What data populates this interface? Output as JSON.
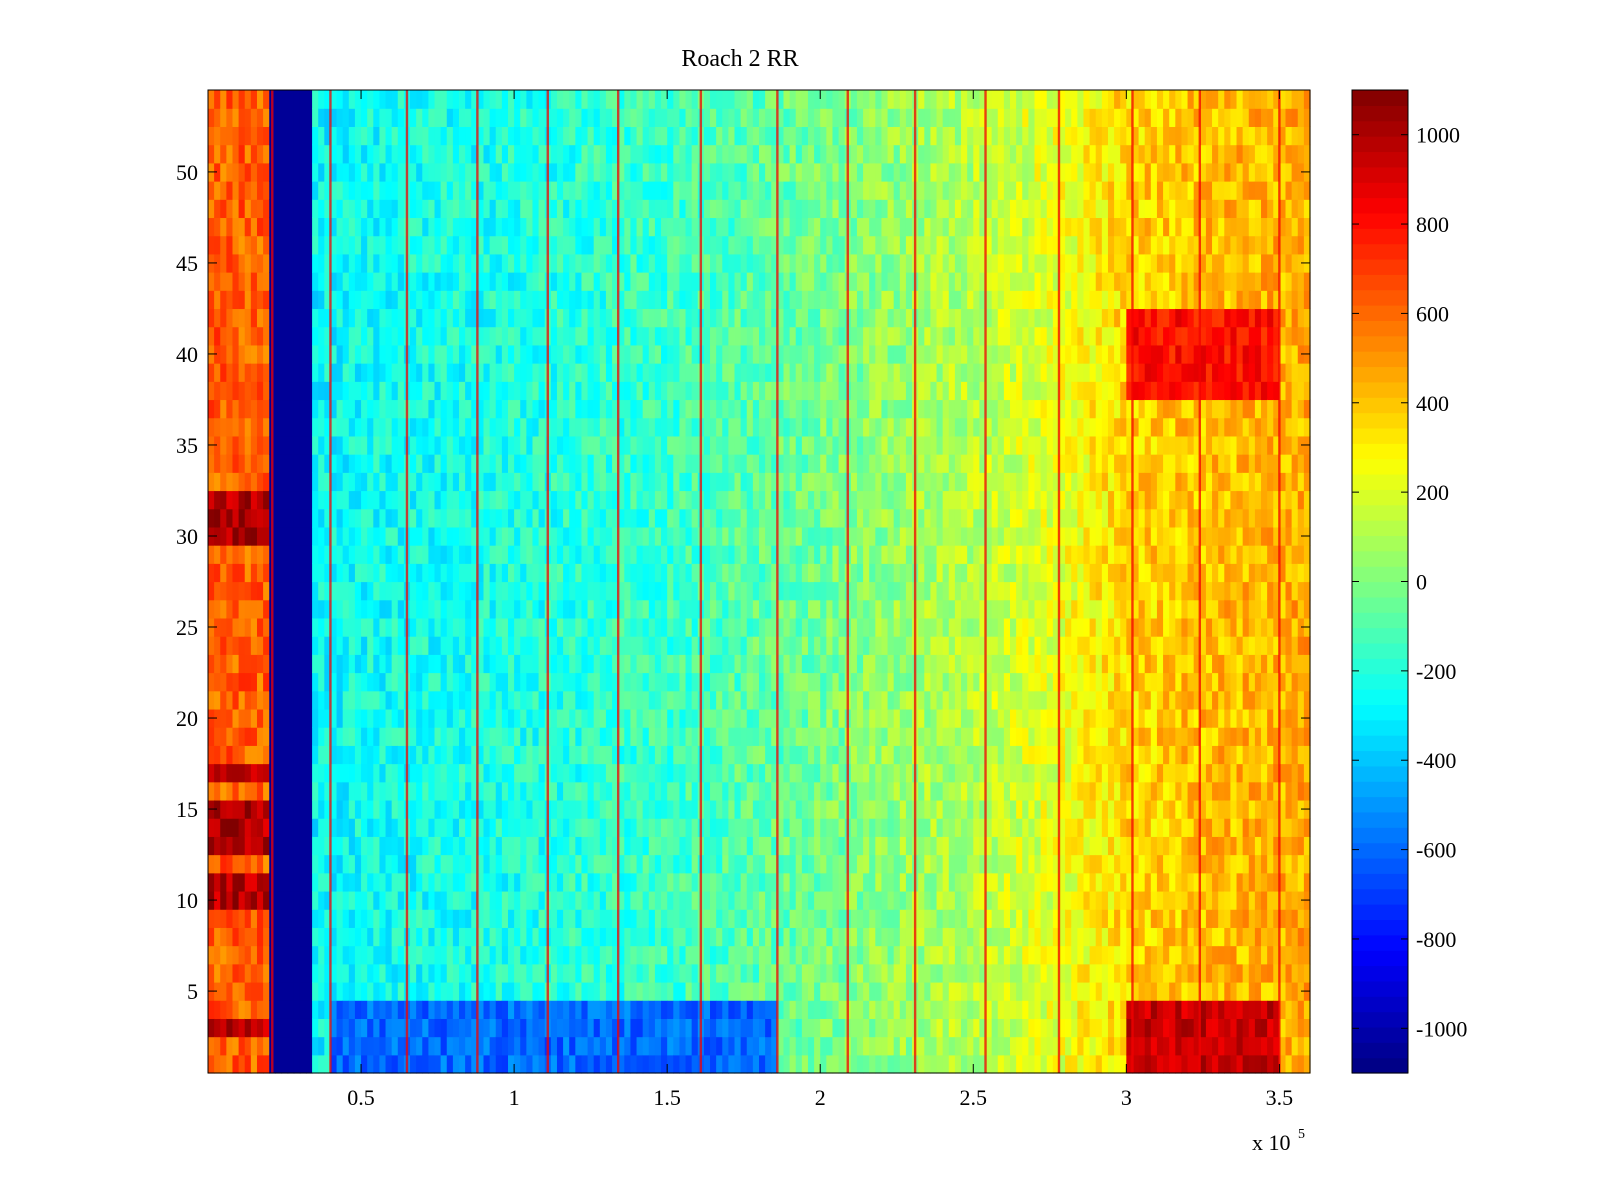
{
  "chart_data": {
    "type": "heatmap",
    "title": "Roach 2 RR",
    "xlabel": "",
    "ylabel": "",
    "x_multiplier_label": "x 10",
    "x_multiplier_exponent": "5",
    "xlim": [
      0,
      3.6
    ],
    "ylim": [
      0.5,
      54.5
    ],
    "rows": 54,
    "x_ticks": [
      {
        "value": 0.5,
        "label": "0.5"
      },
      {
        "value": 1,
        "label": "1"
      },
      {
        "value": 1.5,
        "label": "1.5"
      },
      {
        "value": 2,
        "label": "2"
      },
      {
        "value": 2.5,
        "label": "2.5"
      },
      {
        "value": 3,
        "label": "3"
      },
      {
        "value": 3.5,
        "label": "3.5"
      }
    ],
    "y_ticks": [
      {
        "value": 5,
        "label": "5"
      },
      {
        "value": 10,
        "label": "10"
      },
      {
        "value": 15,
        "label": "15"
      },
      {
        "value": 20,
        "label": "20"
      },
      {
        "value": 25,
        "label": "25"
      },
      {
        "value": 30,
        "label": "30"
      },
      {
        "value": 35,
        "label": "35"
      },
      {
        "value": 40,
        "label": "40"
      },
      {
        "value": 45,
        "label": "45"
      },
      {
        "value": 50,
        "label": "50"
      }
    ],
    "colorbar": {
      "colormap": "jet",
      "clim": [
        -1100,
        1100
      ],
      "ticks": [
        {
          "value": 1000,
          "label": "1000"
        },
        {
          "value": 800,
          "label": "800"
        },
        {
          "value": 600,
          "label": "600"
        },
        {
          "value": 400,
          "label": "400"
        },
        {
          "value": 200,
          "label": "200"
        },
        {
          "value": 0,
          "label": "0"
        },
        {
          "value": -200,
          "label": "-200"
        },
        {
          "value": -400,
          "label": "-400"
        },
        {
          "value": -600,
          "label": "-600"
        },
        {
          "value": -800,
          "label": "-800"
        },
        {
          "value": -1000,
          "label": "-1000"
        }
      ]
    },
    "column_profile": [
      {
        "x": 0.0,
        "value": 620
      },
      {
        "x": 0.2,
        "value": 620
      },
      {
        "x": 0.21,
        "value": -1050
      },
      {
        "x": 0.33,
        "value": -1050
      },
      {
        "x": 0.34,
        "value": -280
      },
      {
        "x": 0.5,
        "value": -250
      },
      {
        "x": 1.0,
        "value": -220
      },
      {
        "x": 1.5,
        "value": -150
      },
      {
        "x": 2.0,
        "value": -30
      },
      {
        "x": 2.5,
        "value": 120
      },
      {
        "x": 2.8,
        "value": 230
      },
      {
        "x": 3.0,
        "value": 360
      },
      {
        "x": 3.3,
        "value": 420
      },
      {
        "x": 3.6,
        "value": 450
      }
    ],
    "vertical_streaks_x": [
      0.21,
      0.4,
      0.65,
      0.88,
      1.11,
      1.34,
      1.61,
      1.86,
      2.09,
      2.31,
      2.54,
      2.78,
      3.02,
      3.24,
      3.5
    ],
    "low_band": {
      "x_range": [
        0.4,
        1.85
      ],
      "row_range": [
        1,
        4
      ],
      "value": -600
    },
    "high_band_bottom": {
      "x_range": [
        3.0,
        3.5
      ],
      "row_range": [
        1,
        4
      ],
      "value": 950
    },
    "high_band_mid": {
      "x_range": [
        3.0,
        3.5
      ],
      "row_range": [
        38,
        42
      ],
      "value": 800
    },
    "left_hot_rows": [
      3,
      10,
      11,
      13,
      14,
      15,
      17,
      30,
      31,
      32
    ]
  }
}
